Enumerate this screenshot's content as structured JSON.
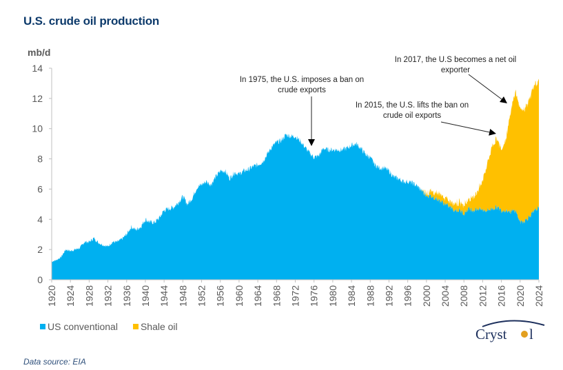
{
  "title": "U.S. crude oil production",
  "source": "Data source: EIA",
  "logo_text": "Cryst•l",
  "colors": {
    "conventional": "#00B0F0",
    "shale": "#FFC000",
    "title": "#0d3a6b",
    "axis": "#bfbfbf"
  },
  "chart_data": {
    "type": "area",
    "stacked": true,
    "title": "U.S. crude oil production",
    "ylabel": "mb/d",
    "xlabel": "",
    "ylim": [
      0,
      14
    ],
    "xlim": [
      1920,
      2024
    ],
    "yticks": [
      0,
      2,
      4,
      6,
      8,
      10,
      12,
      14
    ],
    "xticks": [
      1920,
      1924,
      1928,
      1932,
      1936,
      1940,
      1944,
      1948,
      1952,
      1956,
      1960,
      1964,
      1968,
      1972,
      1976,
      1980,
      1984,
      1988,
      1992,
      1996,
      2000,
      2004,
      2008,
      2012,
      2016,
      2020,
      2024
    ],
    "legend": [
      "US conventional",
      "Shale oil"
    ],
    "legend_position": "bottom-left",
    "grid": false,
    "x": [
      1920,
      1921,
      1922,
      1923,
      1924,
      1925,
      1926,
      1927,
      1928,
      1929,
      1930,
      1931,
      1932,
      1933,
      1934,
      1935,
      1936,
      1937,
      1938,
      1939,
      1940,
      1941,
      1942,
      1943,
      1944,
      1945,
      1946,
      1947,
      1948,
      1949,
      1950,
      1951,
      1952,
      1953,
      1954,
      1955,
      1956,
      1957,
      1958,
      1959,
      1960,
      1961,
      1962,
      1963,
      1964,
      1965,
      1966,
      1967,
      1968,
      1969,
      1970,
      1971,
      1972,
      1973,
      1974,
      1975,
      1976,
      1977,
      1978,
      1979,
      1980,
      1981,
      1982,
      1983,
      1984,
      1985,
      1986,
      1987,
      1988,
      1989,
      1990,
      1991,
      1992,
      1993,
      1994,
      1995,
      1996,
      1997,
      1998,
      1999,
      2000,
      2001,
      2002,
      2003,
      2004,
      2005,
      2006,
      2007,
      2008,
      2009,
      2010,
      2011,
      2012,
      2013,
      2014,
      2015,
      2016,
      2017,
      2018,
      2019,
      2020,
      2021,
      2022,
      2023,
      2024
    ],
    "series": [
      {
        "name": "US conventional",
        "values": [
          1.2,
          1.3,
          1.5,
          2.0,
          1.9,
          2.0,
          2.1,
          2.5,
          2.5,
          2.75,
          2.45,
          2.3,
          2.2,
          2.5,
          2.5,
          2.7,
          3.0,
          3.5,
          3.3,
          3.5,
          4.0,
          3.8,
          3.8,
          4.1,
          4.6,
          4.7,
          4.8,
          5.1,
          5.5,
          5.0,
          5.4,
          6.1,
          6.3,
          6.5,
          6.3,
          6.8,
          7.2,
          7.2,
          6.7,
          7.1,
          7.0,
          7.2,
          7.3,
          7.5,
          7.6,
          7.8,
          8.3,
          8.8,
          9.1,
          9.2,
          9.6,
          9.5,
          9.5,
          9.2,
          8.8,
          8.4,
          8.1,
          8.2,
          8.7,
          8.6,
          8.6,
          8.6,
          8.6,
          8.7,
          8.9,
          9.0,
          8.7,
          8.3,
          8.1,
          7.6,
          7.4,
          7.4,
          7.2,
          6.8,
          6.7,
          6.5,
          6.5,
          6.4,
          6.2,
          5.9,
          5.6,
          5.5,
          5.4,
          5.2,
          5.0,
          4.8,
          4.6,
          4.6,
          4.4,
          4.7,
          4.6,
          4.7,
          4.6,
          4.6,
          4.7,
          4.8,
          4.6,
          4.6,
          4.5,
          4.6,
          3.8,
          3.9,
          4.2,
          4.5,
          4.8
        ]
      },
      {
        "name": "Shale oil",
        "values": [
          0,
          0,
          0,
          0,
          0,
          0,
          0,
          0,
          0,
          0,
          0,
          0,
          0,
          0,
          0,
          0,
          0,
          0,
          0,
          0,
          0,
          0,
          0,
          0,
          0,
          0,
          0,
          0,
          0,
          0,
          0,
          0,
          0,
          0,
          0,
          0,
          0,
          0,
          0,
          0,
          0,
          0,
          0,
          0,
          0,
          0,
          0,
          0,
          0,
          0,
          0,
          0,
          0,
          0,
          0,
          0,
          0,
          0,
          0,
          0,
          0,
          0,
          0,
          0,
          0,
          0,
          0,
          0,
          0,
          0,
          0,
          0,
          0,
          0,
          0,
          0,
          0,
          0,
          0,
          0,
          0.2,
          0.3,
          0.4,
          0.4,
          0.4,
          0.4,
          0.5,
          0.5,
          0.6,
          0.6,
          0.9,
          1.2,
          2.0,
          3.1,
          4.1,
          4.6,
          4.0,
          4.8,
          6.6,
          7.9,
          7.5,
          7.4,
          7.8,
          8.3,
          8.4
        ]
      }
    ],
    "annotations": [
      {
        "lines": [
          "In 1975, the U.S. imposes a ban on",
          "crude exports"
        ],
        "x": 1975,
        "y": 8.9
      },
      {
        "lines": [
          "In 2015, the U.S. lifts the ban on",
          "crude oil exports"
        ],
        "x": 2015,
        "y": 9.7
      },
      {
        "lines": [
          "In 2017, the U.S becomes a net oil",
          "exporter"
        ],
        "x": 2017,
        "y": 11.8
      }
    ]
  }
}
